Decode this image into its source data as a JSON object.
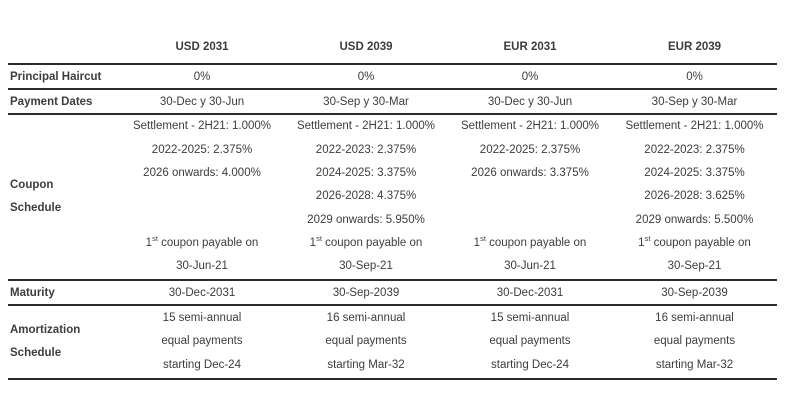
{
  "colors": {
    "text_color": "#3d3d3d",
    "rule_color": "#2b2b2b",
    "background": "#ffffff"
  },
  "table": {
    "columns": [
      "USD 2031",
      "USD 2039",
      "EUR 2031",
      "EUR 2039"
    ],
    "rows": [
      {
        "label": [
          "Principal Haircut"
        ],
        "cells": [
          [
            "0%"
          ],
          [
            "0%"
          ],
          [
            "0%"
          ],
          [
            "0%"
          ]
        ]
      },
      {
        "label": [
          "Payment Dates"
        ],
        "cells": [
          [
            "30-Dec y 30-Jun"
          ],
          [
            "30-Sep y 30-Mar"
          ],
          [
            "30-Dec y 30-Jun"
          ],
          [
            "30-Sep y 30-Mar"
          ]
        ]
      },
      {
        "label": [
          "Coupon",
          "Schedule"
        ],
        "cells": [
          [
            "Settlement - 2H21: 1.000%",
            "2022-2025: 2.375%",
            "2026 onwards: 4.000%",
            "",
            "",
            "1st coupon payable on",
            "30-Jun-21"
          ],
          [
            "Settlement - 2H21: 1.000%",
            "2022-2023: 2.375%",
            "2024-2025: 3.375%",
            "2026-2028: 4.375%",
            "2029 onwards: 5.950%",
            "1st coupon payable on",
            "30-Sep-21"
          ],
          [
            "Settlement - 2H21: 1.000%",
            "2022-2025: 2.375%",
            "2026 onwards: 3.375%",
            "",
            "",
            "1st coupon payable on",
            "30-Jun-21"
          ],
          [
            "Settlement - 2H21: 1.000%",
            "2022-2023: 2.375%",
            "2024-2025: 3.375%",
            "2026-2028: 3.625%",
            "2029 onwards: 5.500%",
            "1st coupon payable on",
            "30-Sep-21"
          ]
        ]
      },
      {
        "label": [
          "Maturity"
        ],
        "cells": [
          [
            "30-Dec-2031"
          ],
          [
            "30-Sep-2039"
          ],
          [
            "30-Dec-2031"
          ],
          [
            "30-Sep-2039"
          ]
        ]
      },
      {
        "label": [
          "Amortization",
          "Schedule"
        ],
        "cells": [
          [
            "15 semi-annual",
            "equal payments",
            "starting Dec-24"
          ],
          [
            "16 semi-annual",
            "equal payments",
            "starting Mar-32"
          ],
          [
            "15 semi-annual",
            "equal payments",
            "starting Dec-24"
          ],
          [
            "16 semi-annual",
            "equal payments",
            "starting Mar-32"
          ]
        ]
      }
    ]
  }
}
